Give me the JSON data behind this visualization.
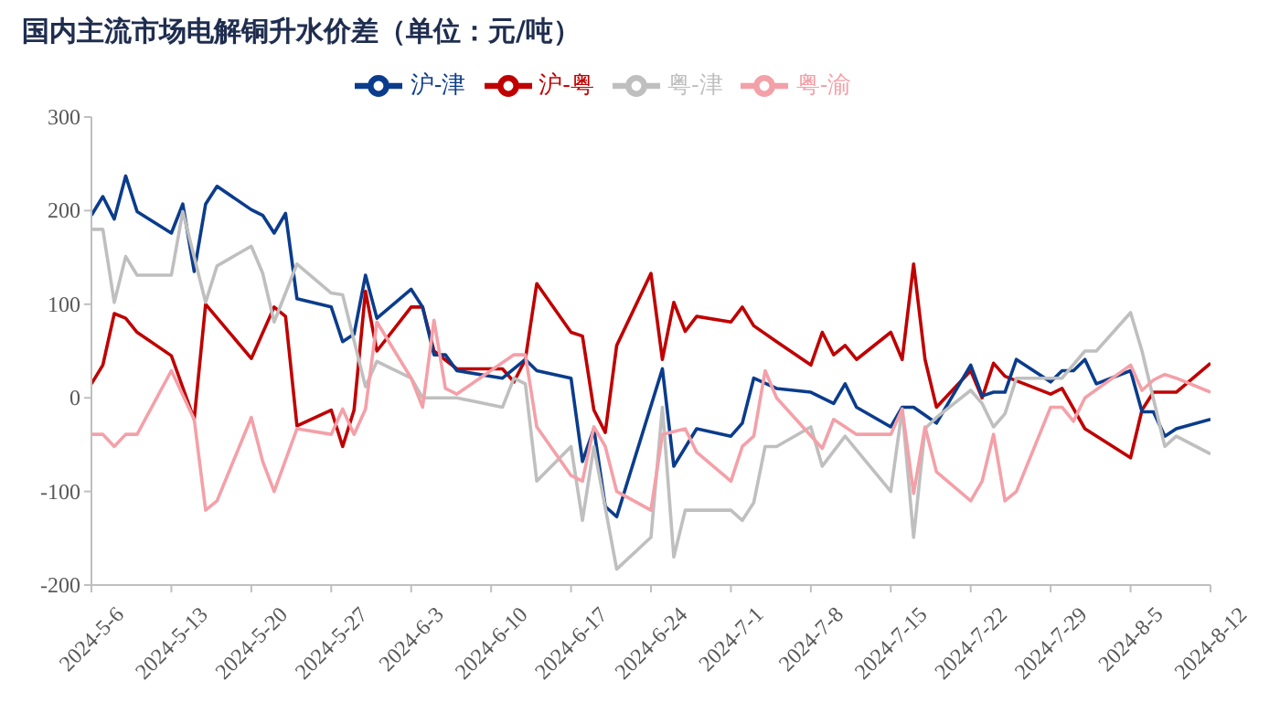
{
  "chart_data": {
    "type": "line",
    "title": "国内主流市场电解铜升水价差（单位：元/吨）",
    "xlim": [
      "2024-05-06",
      "2024-08-12"
    ],
    "xticks": [
      {
        "value": "2024-05-06",
        "label": "2024-5-6"
      },
      {
        "value": "2024-05-13",
        "label": "2024-5-13"
      },
      {
        "value": "2024-05-20",
        "label": "2024-5-20"
      },
      {
        "value": "2024-05-27",
        "label": "2024-5-27"
      },
      {
        "value": "2024-06-03",
        "label": "2024-6-3"
      },
      {
        "value": "2024-06-10",
        "label": "2024-6-10"
      },
      {
        "value": "2024-06-17",
        "label": "2024-6-17"
      },
      {
        "value": "2024-06-24",
        "label": "2024-6-24"
      },
      {
        "value": "2024-07-01",
        "label": "2024-7-1"
      },
      {
        "value": "2024-07-08",
        "label": "2024-7-8"
      },
      {
        "value": "2024-07-15",
        "label": "2024-7-15"
      },
      {
        "value": "2024-07-22",
        "label": "2024-7-22"
      },
      {
        "value": "2024-07-29",
        "label": "2024-7-29"
      },
      {
        "value": "2024-08-05",
        "label": "2024-8-5"
      },
      {
        "value": "2024-08-12",
        "label": "2024-8-12"
      }
    ],
    "ylim": [
      -200,
      300
    ],
    "yticks": [
      -200,
      -100,
      0,
      100,
      200,
      300
    ],
    "grid": false,
    "legend": "top",
    "marker": "none",
    "line_style": "solid",
    "series": [
      {
        "name": "沪-粤",
        "color": "#c00000",
        "x": [
          "2024-05-06",
          "2024-05-07",
          "2024-05-08",
          "2024-05-09",
          "2024-05-10",
          "2024-05-13",
          "2024-05-15",
          "2024-05-16",
          "2024-05-20",
          "2024-05-22",
          "2024-05-23",
          "2024-05-24",
          "2024-05-27",
          "2024-05-28",
          "2024-05-29",
          "2024-05-30",
          "2024-05-31",
          "2024-06-03",
          "2024-06-04",
          "2024-06-05",
          "2024-06-07",
          "2024-06-11",
          "2024-06-12",
          "2024-06-13",
          "2024-06-14",
          "2024-06-17",
          "2024-06-18",
          "2024-06-19",
          "2024-06-20",
          "2024-06-21",
          "2024-06-24",
          "2024-06-25",
          "2024-06-26",
          "2024-06-27",
          "2024-06-28",
          "2024-07-01",
          "2024-07-02",
          "2024-07-03",
          "2024-07-05",
          "2024-07-08",
          "2024-07-09",
          "2024-07-10",
          "2024-07-11",
          "2024-07-12",
          "2024-07-15",
          "2024-07-16",
          "2024-07-17",
          "2024-07-18",
          "2024-07-19",
          "2024-07-22",
          "2024-07-23",
          "2024-07-24",
          "2024-07-25",
          "2024-07-29",
          "2024-07-30",
          "2024-08-01",
          "2024-08-05",
          "2024-08-06",
          "2024-08-07",
          "2024-08-09",
          "2024-08-12"
        ],
        "values": [
          15,
          35,
          90,
          85,
          70,
          45,
          -23,
          100,
          42,
          97,
          87,
          -30,
          -13,
          -52,
          -13,
          114,
          50,
          97,
          97,
          50,
          31,
          31,
          17,
          41,
          122,
          70,
          66,
          -13,
          -37,
          56,
          133,
          41,
          102,
          71,
          87,
          81,
          97,
          77,
          60,
          35,
          70,
          46,
          56,
          41,
          70,
          41,
          143,
          41,
          -10,
          29,
          0,
          37,
          23,
          4,
          10,
          -33,
          -64,
          -13,
          6,
          6,
          37
        ]
      },
      {
        "name": "沪-津",
        "color": "#0b3c8c",
        "x": [
          "2024-05-06",
          "2024-05-07",
          "2024-05-08",
          "2024-05-09",
          "2024-05-10",
          "2024-05-13",
          "2024-05-14",
          "2024-05-15",
          "2024-05-16",
          "2024-05-17",
          "2024-05-20",
          "2024-05-21",
          "2024-05-22",
          "2024-05-23",
          "2024-05-24",
          "2024-05-27",
          "2024-05-28",
          "2024-05-29",
          "2024-05-30",
          "2024-05-31",
          "2024-06-03",
          "2024-06-04",
          "2024-06-05",
          "2024-06-06",
          "2024-06-07",
          "2024-06-11",
          "2024-06-13",
          "2024-06-14",
          "2024-06-17",
          "2024-06-18",
          "2024-06-19",
          "2024-06-20",
          "2024-06-21",
          "2024-06-25",
          "2024-06-26",
          "2024-06-28",
          "2024-07-01",
          "2024-07-02",
          "2024-07-03",
          "2024-07-05",
          "2024-07-08",
          "2024-07-10",
          "2024-07-11",
          "2024-07-12",
          "2024-07-15",
          "2024-07-16",
          "2024-07-17",
          "2024-07-19",
          "2024-07-22",
          "2024-07-23",
          "2024-07-24",
          "2024-07-25",
          "2024-07-26",
          "2024-07-29",
          "2024-07-30",
          "2024-07-31",
          "2024-08-01",
          "2024-08-02",
          "2024-08-05",
          "2024-08-06",
          "2024-08-07",
          "2024-08-08",
          "2024-08-09",
          "2024-08-12"
        ],
        "values": [
          195,
          215,
          191,
          237,
          199,
          176,
          207,
          135,
          207,
          226,
          201,
          195,
          176,
          197,
          106,
          97,
          60,
          68,
          131,
          85,
          116,
          97,
          46,
          46,
          29,
          21,
          41,
          29,
          21,
          -68,
          -33,
          -116,
          -127,
          31,
          -73,
          -33,
          -41,
          -27,
          21,
          10,
          6,
          -6,
          15,
          -10,
          -31,
          -10,
          -10,
          -27,
          35,
          2,
          6,
          6,
          41,
          17,
          29,
          29,
          41,
          15,
          29,
          -15,
          -15,
          -41,
          -33,
          -23
        ]
      },
      {
        "name": "粤-津",
        "color": "#bfbfbf",
        "x": [
          "2024-05-06",
          "2024-05-07",
          "2024-05-08",
          "2024-05-09",
          "2024-05-10",
          "2024-05-13",
          "2024-05-14",
          "2024-05-16",
          "2024-05-17",
          "2024-05-20",
          "2024-05-21",
          "2024-05-22",
          "2024-05-24",
          "2024-05-27",
          "2024-05-28",
          "2024-05-30",
          "2024-05-31",
          "2024-06-03",
          "2024-06-04",
          "2024-06-07",
          "2024-06-11",
          "2024-06-12",
          "2024-06-13",
          "2024-06-14",
          "2024-06-17",
          "2024-06-18",
          "2024-06-19",
          "2024-06-21",
          "2024-06-24",
          "2024-06-25",
          "2024-06-26",
          "2024-06-27",
          "2024-07-01",
          "2024-07-02",
          "2024-07-03",
          "2024-07-04",
          "2024-07-05",
          "2024-07-08",
          "2024-07-09",
          "2024-07-11",
          "2024-07-15",
          "2024-07-16",
          "2024-07-17",
          "2024-07-18",
          "2024-07-19",
          "2024-07-22",
          "2024-07-23",
          "2024-07-24",
          "2024-07-25",
          "2024-07-26",
          "2024-07-30",
          "2024-08-01",
          "2024-08-02",
          "2024-08-05",
          "2024-08-06",
          "2024-08-08",
          "2024-08-09",
          "2024-08-12"
        ],
        "values": [
          180,
          180,
          102,
          151,
          131,
          131,
          199,
          102,
          141,
          162,
          133,
          81,
          143,
          112,
          110,
          12,
          39,
          21,
          0,
          0,
          -10,
          21,
          15,
          -89,
          -52,
          -131,
          -52,
          -183,
          -149,
          -10,
          -170,
          -120,
          -120,
          -131,
          -112,
          -52,
          -52,
          -31,
          -73,
          -41,
          -100,
          -12,
          -149,
          -33,
          -21,
          8,
          -6,
          -31,
          -17,
          21,
          21,
          50,
          50,
          91,
          50,
          -52,
          -41,
          -60
        ]
      },
      {
        "name": "粤-渝",
        "color": "#f4a0a8",
        "x": [
          "2024-05-06",
          "2024-05-07",
          "2024-05-08",
          "2024-05-09",
          "2024-05-10",
          "2024-05-13",
          "2024-05-15",
          "2024-05-16",
          "2024-05-17",
          "2024-05-20",
          "2024-05-21",
          "2024-05-22",
          "2024-05-24",
          "2024-05-27",
          "2024-05-28",
          "2024-05-29",
          "2024-05-30",
          "2024-05-31",
          "2024-06-03",
          "2024-06-04",
          "2024-06-05",
          "2024-06-06",
          "2024-06-07",
          "2024-06-12",
          "2024-06-13",
          "2024-06-14",
          "2024-06-17",
          "2024-06-18",
          "2024-06-19",
          "2024-06-20",
          "2024-06-21",
          "2024-06-24",
          "2024-06-25",
          "2024-06-27",
          "2024-06-28",
          "2024-07-01",
          "2024-07-02",
          "2024-07-03",
          "2024-07-04",
          "2024-07-05",
          "2024-07-09",
          "2024-07-10",
          "2024-07-12",
          "2024-07-15",
          "2024-07-16",
          "2024-07-17",
          "2024-07-18",
          "2024-07-19",
          "2024-07-22",
          "2024-07-23",
          "2024-07-24",
          "2024-07-25",
          "2024-07-26",
          "2024-07-29",
          "2024-07-30",
          "2024-07-31",
          "2024-08-01",
          "2024-08-05",
          "2024-08-06",
          "2024-08-07",
          "2024-08-08",
          "2024-08-09",
          "2024-08-12"
        ],
        "values": [
          -39,
          -39,
          -52,
          -39,
          -39,
          29,
          -23,
          -120,
          -110,
          -21,
          -68,
          -100,
          -33,
          -39,
          -12,
          -39,
          -12,
          81,
          21,
          -10,
          83,
          10,
          4,
          46,
          46,
          -31,
          -83,
          -89,
          -31,
          -52,
          -100,
          -120,
          -39,
          -33,
          -58,
          -89,
          -52,
          -41,
          29,
          0,
          -54,
          -23,
          -39,
          -39,
          -12,
          -102,
          -31,
          -79,
          -110,
          -89,
          -39,
          -110,
          -100,
          -10,
          -10,
          -25,
          0,
          35,
          8,
          19,
          25,
          21,
          6
        ]
      }
    ]
  }
}
